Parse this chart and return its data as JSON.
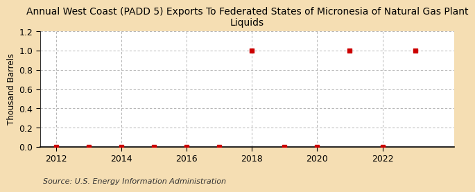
{
  "title": "Annual West Coast (PADD 5) Exports To Federated States of Micronesia of Natural Gas Plant\nLiquids",
  "ylabel": "Thousand Barrels",
  "source": "Source: U.S. Energy Information Administration",
  "figure_bg": "#f5deb3",
  "plot_bg": "#ffffff",
  "years": [
    2012,
    2013,
    2014,
    2015,
    2016,
    2017,
    2018,
    2019,
    2020,
    2021,
    2022,
    2023
  ],
  "values": [
    0,
    0,
    0,
    0,
    0,
    0,
    1.0,
    0,
    0,
    1.0,
    0,
    1.0
  ],
  "marker_color": "#cc0000",
  "marker_size": 4,
  "xlim": [
    2011.5,
    2024.2
  ],
  "ylim": [
    0,
    1.2
  ],
  "yticks": [
    0.0,
    0.2,
    0.4,
    0.6,
    0.8,
    1.0,
    1.2
  ],
  "xticks": [
    2012,
    2014,
    2016,
    2018,
    2020,
    2022
  ],
  "grid_color": "#aaaaaa",
  "title_fontsize": 10,
  "axis_fontsize": 8.5,
  "tick_fontsize": 9,
  "source_fontsize": 8
}
